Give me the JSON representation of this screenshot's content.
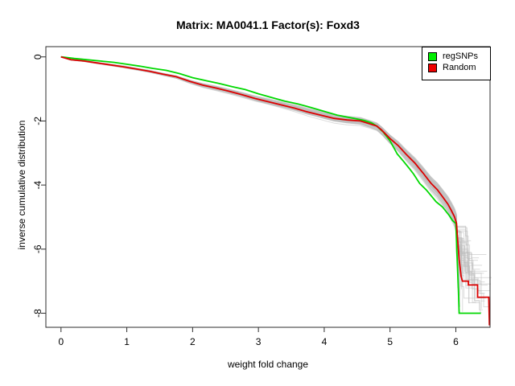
{
  "chart_data": {
    "type": "line",
    "title": "Matrix: MA0041.1 Factor(s): Foxd3",
    "xlabel": "weight fold change",
    "ylabel": "inverse cumulative distribution",
    "x_ticks": [
      0,
      1,
      2,
      3,
      4,
      5,
      6
    ],
    "y_ticks": [
      0,
      -2,
      -4,
      -6,
      -8
    ],
    "xlim": [
      -0.23,
      6.52
    ],
    "ylim": [
      -8.44,
      0.32
    ],
    "grid": false,
    "box": true,
    "axis_color": "#2e2e2e",
    "text_color": "#000000",
    "legend": {
      "position": "topright",
      "items": [
        {
          "label": "regSNPs",
          "color": "#00EE00"
        },
        {
          "label": "Random",
          "color": "#EE0000"
        }
      ]
    },
    "series": [
      {
        "name": "regSNPs",
        "color": "#00D800",
        "width": 1.8,
        "points": [
          [
            0,
            0
          ],
          [
            0.2,
            -0.05
          ],
          [
            0.4,
            -0.09
          ],
          [
            0.6,
            -0.13
          ],
          [
            0.8,
            -0.17
          ],
          [
            1.0,
            -0.23
          ],
          [
            1.2,
            -0.29
          ],
          [
            1.4,
            -0.36
          ],
          [
            1.6,
            -0.42
          ],
          [
            1.8,
            -0.52
          ],
          [
            2.0,
            -0.65
          ],
          [
            2.2,
            -0.74
          ],
          [
            2.4,
            -0.83
          ],
          [
            2.6,
            -0.93
          ],
          [
            2.8,
            -1.02
          ],
          [
            3.0,
            -1.15
          ],
          [
            3.2,
            -1.27
          ],
          [
            3.4,
            -1.38
          ],
          [
            3.6,
            -1.47
          ],
          [
            3.8,
            -1.58
          ],
          [
            4.0,
            -1.7
          ],
          [
            4.2,
            -1.82
          ],
          [
            4.4,
            -1.9
          ],
          [
            4.6,
            -1.98
          ],
          [
            4.72,
            -2.06
          ],
          [
            4.8,
            -2.16
          ],
          [
            4.9,
            -2.35
          ],
          [
            5.0,
            -2.62
          ],
          [
            5.11,
            -3.03
          ],
          [
            5.2,
            -3.25
          ],
          [
            5.3,
            -3.5
          ],
          [
            5.36,
            -3.66
          ],
          [
            5.45,
            -3.95
          ],
          [
            5.55,
            -4.15
          ],
          [
            5.62,
            -4.32
          ],
          [
            5.7,
            -4.52
          ],
          [
            5.8,
            -4.69
          ],
          [
            5.9,
            -4.95
          ],
          [
            5.95,
            -5.11
          ],
          [
            6.0,
            -5.2
          ],
          [
            6.02,
            -6.3
          ],
          [
            6.04,
            -7.3
          ],
          [
            6.05,
            -8.0
          ],
          [
            6.38,
            -8.0
          ]
        ]
      },
      {
        "name": "Random",
        "color": "#DC0000",
        "width": 1.8,
        "points": [
          [
            0,
            0
          ],
          [
            0.15,
            -0.09
          ],
          [
            0.35,
            -0.13
          ],
          [
            0.55,
            -0.19
          ],
          [
            0.75,
            -0.25
          ],
          [
            0.95,
            -0.31
          ],
          [
            1.15,
            -0.38
          ],
          [
            1.35,
            -0.45
          ],
          [
            1.55,
            -0.54
          ],
          [
            1.75,
            -0.62
          ],
          [
            1.95,
            -0.76
          ],
          [
            2.15,
            -0.88
          ],
          [
            2.35,
            -0.97
          ],
          [
            2.55,
            -1.07
          ],
          [
            2.75,
            -1.18
          ],
          [
            2.95,
            -1.3
          ],
          [
            3.15,
            -1.4
          ],
          [
            3.35,
            -1.5
          ],
          [
            3.55,
            -1.6
          ],
          [
            3.75,
            -1.72
          ],
          [
            3.95,
            -1.82
          ],
          [
            4.15,
            -1.92
          ],
          [
            4.35,
            -1.97
          ],
          [
            4.55,
            -2.0
          ],
          [
            4.68,
            -2.08
          ],
          [
            4.8,
            -2.16
          ],
          [
            4.87,
            -2.28
          ],
          [
            5.0,
            -2.55
          ],
          [
            5.13,
            -2.78
          ],
          [
            5.25,
            -3.05
          ],
          [
            5.38,
            -3.32
          ],
          [
            5.5,
            -3.62
          ],
          [
            5.62,
            -3.94
          ],
          [
            5.72,
            -4.15
          ],
          [
            5.8,
            -4.37
          ],
          [
            5.88,
            -4.6
          ],
          [
            5.93,
            -4.79
          ],
          [
            5.98,
            -4.99
          ],
          [
            6.01,
            -5.19
          ],
          [
            6.03,
            -5.75
          ],
          [
            6.05,
            -6.32
          ],
          [
            6.07,
            -6.67
          ],
          [
            6.08,
            -6.85
          ],
          [
            6.1,
            -7.0
          ],
          [
            6.19,
            -7.0
          ],
          [
            6.19,
            -7.12
          ],
          [
            6.33,
            -7.12
          ],
          [
            6.33,
            -7.5
          ],
          [
            6.5,
            -7.5
          ],
          [
            6.51,
            -8.38
          ]
        ]
      }
    ],
    "background_ensemble": {
      "name": "random permutation curves",
      "color": "#BEBEBE",
      "opacity": 0.55,
      "width": 1,
      "count": 45,
      "seed": 20240917,
      "base_series": 1,
      "base_end_x": 6.01,
      "scale_range": [
        0.94,
        1.06
      ],
      "wiggle_amp": 0.05,
      "tail_x_end_range": [
        6.02,
        6.55
      ],
      "tail_y_end_range": [
        -5.4,
        -8.1
      ],
      "step_drop_range": [
        0.25,
        1.0
      ],
      "step_run_range": [
        0.02,
        0.18
      ]
    }
  }
}
